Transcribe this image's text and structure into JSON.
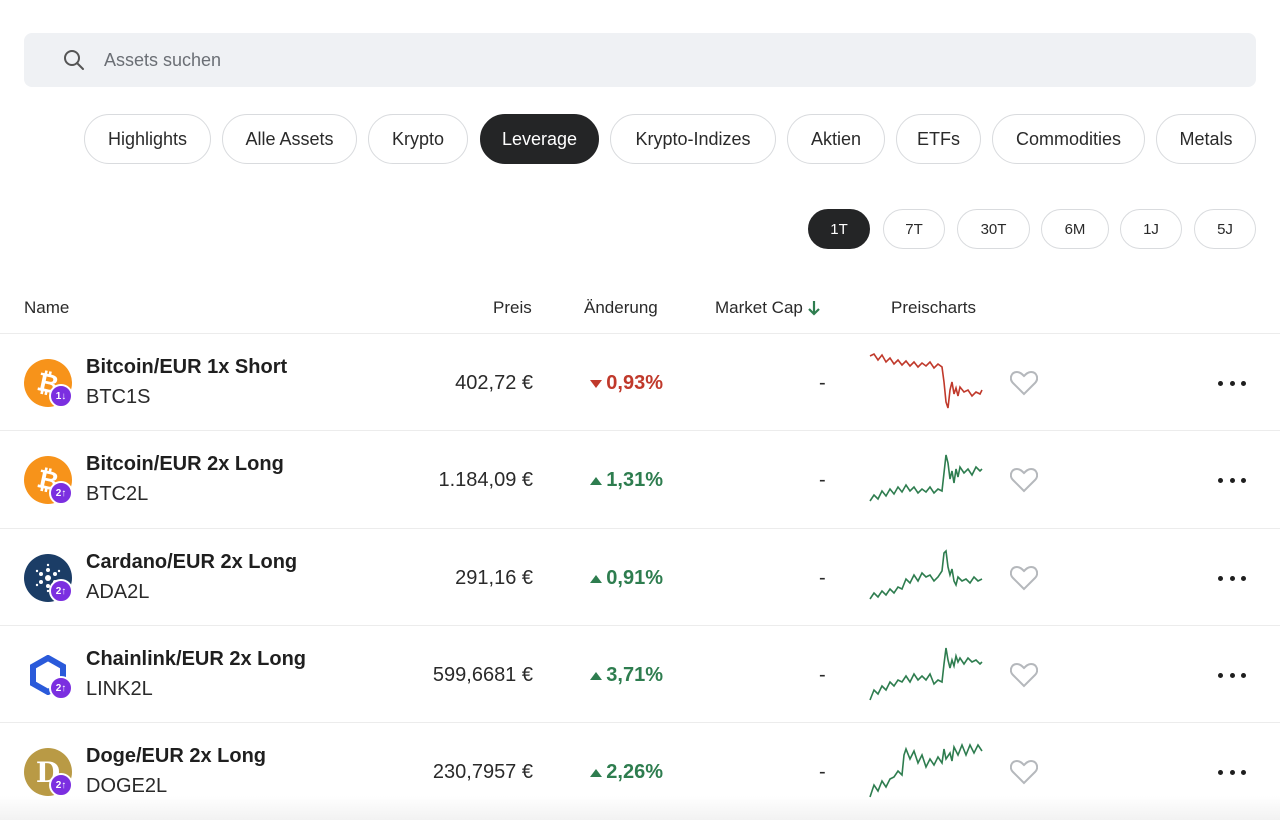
{
  "search": {
    "placeholder": "Assets suchen",
    "icon": "search-icon"
  },
  "categories": [
    {
      "label": "Highlights",
      "active": false
    },
    {
      "label": "Alle Assets",
      "active": false
    },
    {
      "label": "Krypto",
      "active": false
    },
    {
      "label": "Leverage",
      "active": true
    },
    {
      "label": "Krypto-Indizes",
      "active": false
    },
    {
      "label": "Aktien",
      "active": false
    },
    {
      "label": "ETFs",
      "active": false
    },
    {
      "label": "Commodities",
      "active": false
    },
    {
      "label": "Metals",
      "active": false
    }
  ],
  "periods": [
    {
      "label": "1T",
      "active": true
    },
    {
      "label": "7T",
      "active": false
    },
    {
      "label": "30T",
      "active": false
    },
    {
      "label": "6M",
      "active": false
    },
    {
      "label": "1J",
      "active": false
    },
    {
      "label": "5J",
      "active": false
    }
  ],
  "table": {
    "headers": {
      "name": "Name",
      "price": "Preis",
      "change": "Änderung",
      "market_cap": "Market Cap",
      "charts": "Preischarts"
    },
    "sort_icon": "arrow-down-icon",
    "rows": [
      {
        "name": "Bitcoin/EUR 1x Short",
        "symbol": "BTC1S",
        "price": "402,72 €",
        "change": "0,93%",
        "direction": "down",
        "market_cap": "-",
        "badge": "1↓",
        "logo": "bitcoin-logo"
      },
      {
        "name": "Bitcoin/EUR 2x Long",
        "symbol": "BTC2L",
        "price": "1.184,09 €",
        "change": "1,31%",
        "direction": "up",
        "market_cap": "-",
        "badge": "2↑",
        "logo": "bitcoin-logo"
      },
      {
        "name": "Cardano/EUR 2x Long",
        "symbol": "ADA2L",
        "price": "291,16 €",
        "change": "0,91%",
        "direction": "up",
        "market_cap": "-",
        "badge": "2↑",
        "logo": "cardano-logo"
      },
      {
        "name": "Chainlink/EUR 2x Long",
        "symbol": "LINK2L",
        "price": "599,6681 €",
        "change": "3,71%",
        "direction": "up",
        "market_cap": "-",
        "badge": "2↑",
        "logo": "chainlink-logo"
      },
      {
        "name": "Doge/EUR 2x Long",
        "symbol": "DOGE2L",
        "price": "230,7957 €",
        "change": "2,26%",
        "direction": "up",
        "market_cap": "-",
        "badge": "2↑",
        "logo": "dogecoin-logo"
      }
    ]
  },
  "colors": {
    "up": "#2e7d4f",
    "down": "#c0392b",
    "active_pill": "#242526",
    "badge": "#7b2fe0",
    "bitcoin": "#f7931a",
    "cardano": "#1b3d66",
    "chainlink": "#2a5ada",
    "doge": "#b99a45"
  }
}
